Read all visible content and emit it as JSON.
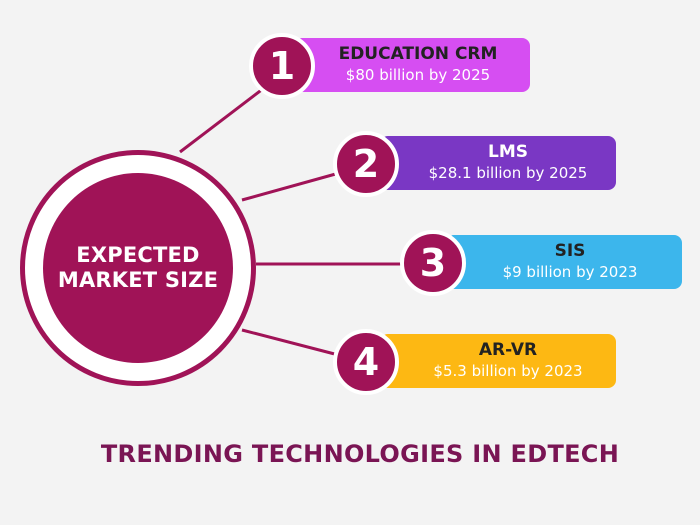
{
  "center": {
    "lines": [
      "EXPECTED",
      "MARKET SIZE"
    ]
  },
  "items": [
    {
      "number": "1",
      "title": "EDUCATION CRM",
      "value": "$80 billion by 2025",
      "color": "#d64ef2"
    },
    {
      "number": "2",
      "title": "LMS",
      "value": "$28.1 billion by 2025",
      "color": "#7a37c4"
    },
    {
      "number": "3",
      "title": "SIS",
      "value": "$9 billion by 2023",
      "color": "#3cb6ec"
    },
    {
      "number": "4",
      "title": "AR-VR",
      "value": "$5.3 billion by 2023",
      "color": "#fdb813"
    }
  ],
  "footer": "TRENDING TECHNOLOGIES IN EDTECH",
  "colors": {
    "primary": "#a01357",
    "footer": "#7a1554",
    "background": "#f3f3f3"
  }
}
